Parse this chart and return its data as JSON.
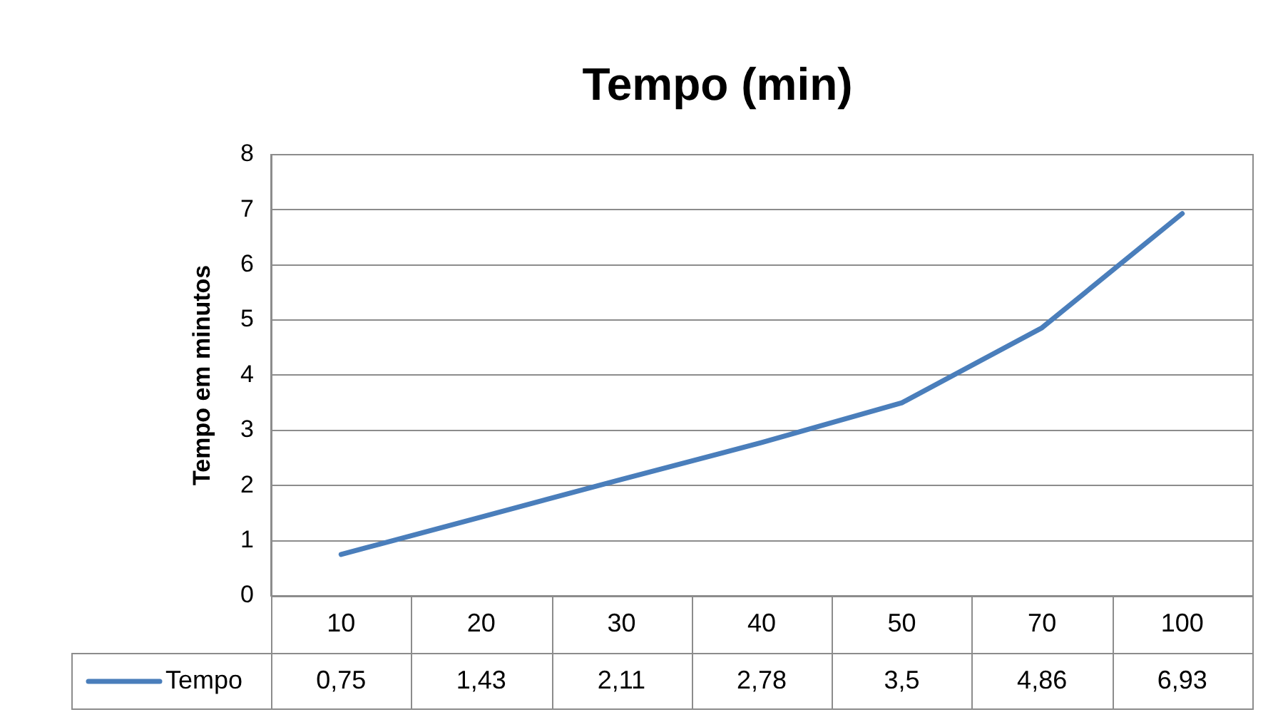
{
  "chart_data": {
    "type": "line",
    "title": "Tempo (min)",
    "ylabel": "Tempo em minutos",
    "categories": [
      "10",
      "20",
      "30",
      "40",
      "50",
      "70",
      "100"
    ],
    "series": [
      {
        "name": "Tempo",
        "color": "#4a7ebb",
        "values": [
          0.75,
          1.43,
          2.11,
          2.78,
          3.5,
          4.86,
          6.93
        ],
        "value_labels": [
          "0,75",
          "1,43",
          "2,11",
          "2,78",
          "3,5",
          "4,86",
          "6,93"
        ]
      }
    ],
    "ylim": [
      0,
      8
    ],
    "yticks": [
      0,
      1,
      2,
      3,
      4,
      5,
      6,
      7,
      8
    ],
    "grid": "y",
    "legend": "bottom",
    "marker": "none",
    "line_style": "solid"
  }
}
